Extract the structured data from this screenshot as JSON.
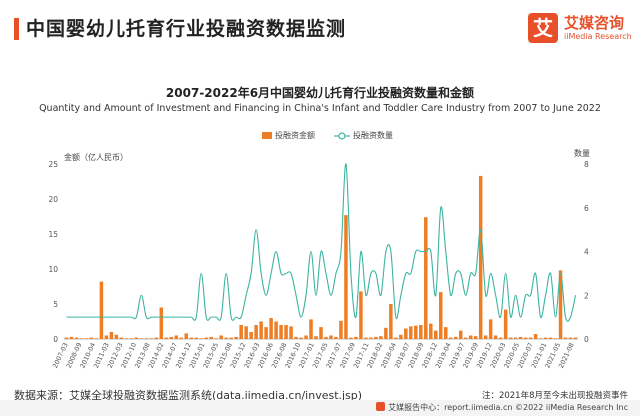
{
  "header": {
    "title": "中国婴幼儿托育行业投融资数据监测",
    "logo_mark": "艾",
    "logo_cn": "艾媒咨询",
    "logo_en": "iiMedia Research"
  },
  "chart_data": {
    "type": "bar+line",
    "title": "2007-2022年6月中国婴幼儿托育行业投融资数量和金额",
    "subtitle": "Quantity and Amount of Investment and Financing in China's Infant and Toddler Care Industry from 2007 to June 2022",
    "legend": {
      "position": "top-center",
      "bar_label": "投融资金额",
      "line_label": "投融资数量"
    },
    "y_left": {
      "label": "金额（亿人民币）",
      "range": [
        0,
        25
      ],
      "ticks": [
        0,
        5,
        10,
        15,
        20,
        25
      ]
    },
    "y_right": {
      "label": "数量",
      "range": [
        0,
        8
      ],
      "ticks": [
        0,
        2,
        4,
        6,
        8
      ]
    },
    "grid": false,
    "x_tick_labels": [
      "2007-03",
      "2008-09",
      "2010-04",
      "2011-03",
      "2012-03",
      "2012-10",
      "2013-08",
      "2014-02",
      "2014-07",
      "2014-12",
      "2015-01",
      "2015-05",
      "2015-08",
      "2015-12",
      "2016-03",
      "2016-06",
      "2016-08",
      "2016-10",
      "2017-01",
      "2017-05",
      "2017-07",
      "2017-09",
      "2017-11",
      "2018-02",
      "2018-04",
      "2018-07",
      "2018-09",
      "2018-12",
      "2019-04",
      "2019-07",
      "2019-09",
      "2019-12",
      "2020-03",
      "2020-05",
      "2020-07",
      "2021-01",
      "2021-05",
      "2021-08"
    ],
    "series": [
      {
        "name": "投融资金额",
        "kind": "bar",
        "axis": "left",
        "color": "#ee7d24",
        "values": [
          0.2,
          0.3,
          0.2,
          0.1,
          0.1,
          0.2,
          0.1,
          8.2,
          0.5,
          1.0,
          0.6,
          0.2,
          0.1,
          0.1,
          0.2,
          0.1,
          0.1,
          0.1,
          0.2,
          4.5,
          0.2,
          0.3,
          0.5,
          0.2,
          0.8,
          0.2,
          0.2,
          0.1,
          0.2,
          0.3,
          0.1,
          0.5,
          0.2,
          0.2,
          0.3,
          2.0,
          1.8,
          1.0,
          2.0,
          2.5,
          1.7,
          3.0,
          2.5,
          2.0,
          2.0,
          1.8,
          0.3,
          0.2,
          0.5,
          2.8,
          0.4,
          1.7,
          0.3,
          0.5,
          0.3,
          2.6,
          17.7,
          0.2,
          0.3,
          6.8,
          0.2,
          0.2,
          0.3,
          0.4,
          1.6,
          5.0,
          0.2,
          0.6,
          1.5,
          1.8,
          1.9,
          2.0,
          17.4,
          2.2,
          1.2,
          6.7,
          1.7,
          0.2,
          0.3,
          1.2,
          0.2,
          0.5,
          0.4,
          23.3,
          0.5,
          2.8,
          0.5,
          0.2,
          4.2,
          0.2,
          0.2,
          0.3,
          0.2,
          0.2,
          0.7,
          0.1,
          0.2,
          0.2,
          0.1,
          9.8,
          0.2,
          0.2,
          0.2
        ],
        "value_step": "monthly bins, approximate"
      },
      {
        "name": "投融资数量",
        "kind": "line",
        "axis": "right",
        "color": "#3cb4a0",
        "values": [
          1,
          1,
          1,
          1,
          1,
          1,
          1,
          1,
          1,
          1,
          1,
          1,
          1,
          1,
          1,
          2,
          1,
          1,
          1,
          1,
          1,
          1,
          1,
          1,
          1,
          1,
          1,
          3,
          1,
          1,
          1,
          1,
          3,
          1,
          1,
          1,
          2,
          3,
          5,
          3,
          2,
          3,
          4,
          3,
          3,
          3,
          2,
          1,
          2,
          4,
          2,
          4,
          3,
          2,
          3,
          4,
          8,
          3,
          1,
          4,
          2,
          3,
          3,
          2,
          4,
          4,
          1,
          2,
          3,
          3,
          4,
          4,
          4,
          4,
          2,
          6,
          4,
          2,
          3,
          3,
          2,
          3,
          3,
          5,
          2,
          3,
          2,
          1,
          3,
          1,
          2,
          1,
          2,
          2,
          3,
          1,
          2,
          3,
          1,
          3,
          1,
          1,
          2
        ]
      }
    ]
  },
  "footer": {
    "source": "数据来源：艾媒全球投融资数据监测系统(data.iimedia.cn/invest.jsp)",
    "note": "注：2021年8月至今未出现投融资事件",
    "report": "艾媒报告中心：report.iimedia.cn  ©2022  iiMedia Research Inc"
  },
  "colors": {
    "accent": "#e8502a",
    "bar": "#ee7d24",
    "line": "#3cb4a0"
  }
}
